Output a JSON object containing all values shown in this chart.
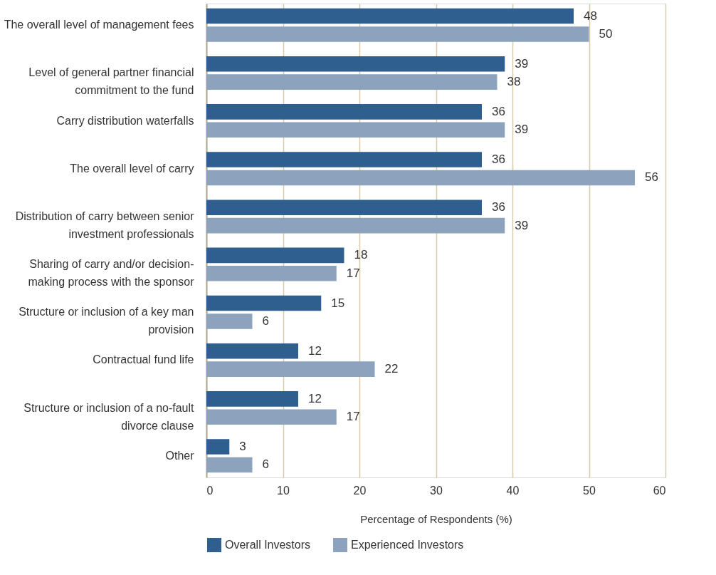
{
  "chart_data": {
    "type": "bar",
    "orientation": "horizontal",
    "xlabel": "Percentage of Respondents (%)",
    "categories": [
      "The overall level of management fees",
      "Level of general partner financial commitment to the fund",
      "Carry distribution waterfalls",
      "The overall level of carry",
      "Distribution of carry between senior investment professionals",
      "Sharing of carry and/or decision-making process with the sponsor",
      "Structure or inclusion of a key man provision",
      "Contractual fund life",
      "Structure or inclusion of a no-fault divorce clause",
      "Other"
    ],
    "series": [
      {
        "name": "Overall Investors",
        "color": "#2f5f8f",
        "values": [
          48,
          39,
          36,
          36,
          36,
          18,
          15,
          12,
          12,
          3
        ]
      },
      {
        "name": "Experienced Investors",
        "color": "#8da2bc",
        "values": [
          50,
          38,
          39,
          56,
          39,
          17,
          6,
          22,
          17,
          6
        ]
      }
    ],
    "xlim": [
      0,
      60
    ],
    "xticks": [
      0,
      10,
      20,
      30,
      40,
      50,
      60
    ],
    "grid": "x",
    "legend": "bottom",
    "data_labels": true
  }
}
